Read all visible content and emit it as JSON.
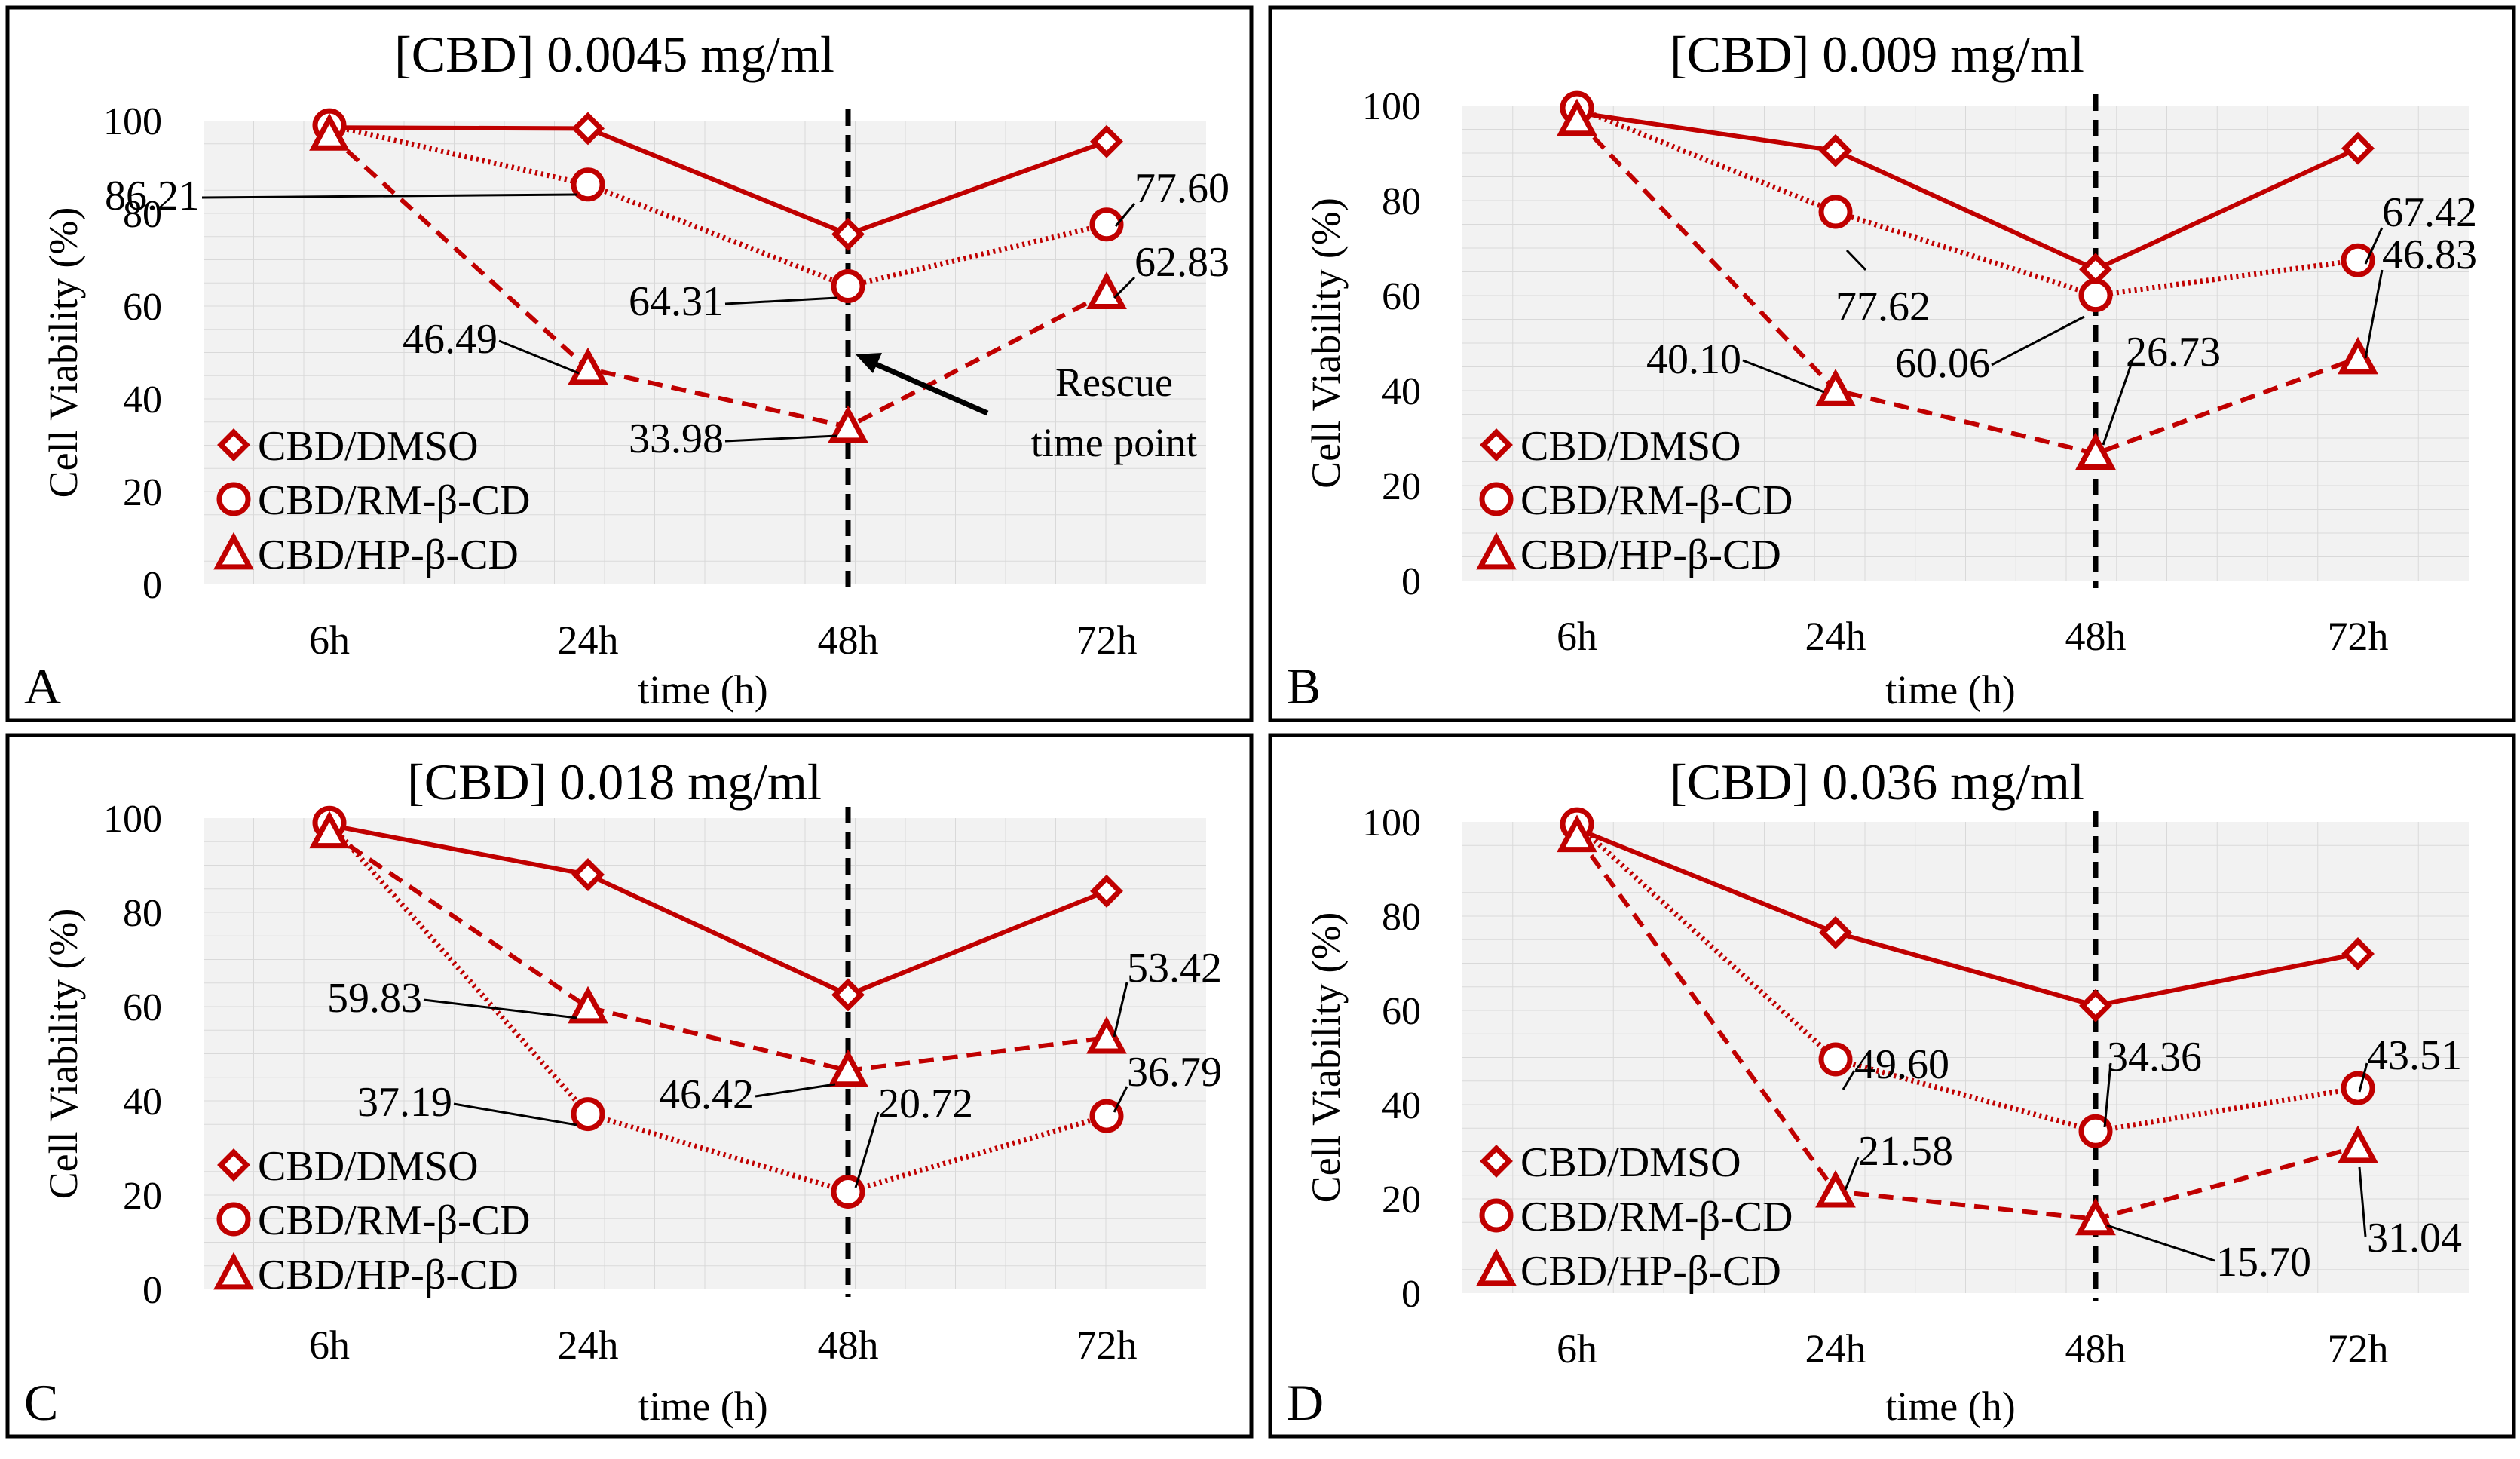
{
  "colors": {
    "series": "#c00000",
    "frame": "#000000",
    "plot_bg": "#f2f2f2",
    "grid": "#d9d9d9"
  },
  "chart_data": [
    {
      "type": "line",
      "panel": "A",
      "title": "[CBD] 0.0045 mg/ml",
      "xlabel": "time (h)",
      "ylabel": "Cell Viability (%)",
      "categories": [
        "6h",
        "24h",
        "48h",
        "72h"
      ],
      "ylim": [
        0,
        100
      ],
      "yticks": [
        "0",
        "20",
        "40",
        "60",
        "80",
        "100"
      ],
      "grid": true,
      "legend_position": "bottom-left",
      "series": [
        {
          "name": "CBD/DMSO",
          "marker": "diamond",
          "dash": "solid",
          "values": [
            98.5,
            98.3,
            75.5,
            95.5
          ]
        },
        {
          "name": "CBD/RM-β-CD",
          "marker": "circle",
          "dash": "dotted",
          "values": [
            99,
            86.21,
            64.31,
            77.6
          ]
        },
        {
          "name": "CBD/HP-β-CD",
          "marker": "triangle",
          "dash": "dashed",
          "values": [
            97,
            46.49,
            33.98,
            62.83
          ]
        }
      ],
      "value_labels": [
        {
          "text": "86.21",
          "series": 1,
          "index": 1
        },
        {
          "text": "77.60",
          "series": 1,
          "index": 3
        },
        {
          "text": "62.83",
          "series": 2,
          "index": 3
        },
        {
          "text": "64.31",
          "series": 1,
          "index": 2
        },
        {
          "text": "46.49",
          "series": 2,
          "index": 1
        },
        {
          "text": "33.98",
          "series": 2,
          "index": 2
        }
      ],
      "annotation": {
        "line1": "Rescue",
        "line2": "time point"
      }
    },
    {
      "type": "line",
      "panel": "B",
      "title": "[CBD] 0.009 mg/ml",
      "xlabel": "time (h)",
      "ylabel": "Cell Viability (%)",
      "categories": [
        "6h",
        "24h",
        "48h",
        "72h"
      ],
      "ylim": [
        0,
        100
      ],
      "yticks": [
        "0",
        "20",
        "40",
        "60",
        "80",
        "100"
      ],
      "grid": true,
      "legend_position": "bottom-left",
      "series": [
        {
          "name": "CBD/DMSO",
          "marker": "diamond",
          "dash": "solid",
          "values": [
            98.5,
            90.5,
            65.5,
            91
          ]
        },
        {
          "name": "CBD/RM-β-CD",
          "marker": "circle",
          "dash": "dotted",
          "values": [
            99.5,
            77.62,
            60.06,
            67.42
          ]
        },
        {
          "name": "CBD/HP-β-CD",
          "marker": "triangle",
          "dash": "dashed",
          "values": [
            97,
            40.1,
            26.73,
            46.83
          ]
        }
      ],
      "value_labels": [
        {
          "text": "67.42",
          "series": 1,
          "index": 3
        },
        {
          "text": "46.83",
          "series": 2,
          "index": 3
        },
        {
          "text": "77.62",
          "series": 1,
          "index": 1
        },
        {
          "text": "60.06",
          "series": 1,
          "index": 2
        },
        {
          "text": "40.10",
          "series": 2,
          "index": 1
        },
        {
          "text": "26.73",
          "series": 2,
          "index": 2
        }
      ]
    },
    {
      "type": "line",
      "panel": "C",
      "title": "[CBD] 0.018 mg/ml",
      "xlabel": "time (h)",
      "ylabel": "Cell Viability (%)",
      "categories": [
        "6h",
        "24h",
        "48h",
        "72h"
      ],
      "ylim": [
        0,
        100
      ],
      "yticks": [
        "0",
        "20",
        "40",
        "60",
        "80",
        "100"
      ],
      "grid": true,
      "legend_position": "bottom-left",
      "series": [
        {
          "name": "CBD/DMSO",
          "marker": "diamond",
          "dash": "solid",
          "values": [
            98.5,
            88,
            62.5,
            84.5
          ]
        },
        {
          "name": "CBD/RM-β-CD",
          "marker": "circle",
          "dash": "dotted",
          "values": [
            99,
            37.19,
            20.72,
            36.79
          ]
        },
        {
          "name": "CBD/HP-β-CD",
          "marker": "triangle",
          "dash": "dashed",
          "values": [
            97,
            59.83,
            46.42,
            53.42
          ]
        }
      ],
      "value_labels": [
        {
          "text": "59.83",
          "series": 2,
          "index": 1
        },
        {
          "text": "53.42",
          "series": 2,
          "index": 3
        },
        {
          "text": "36.79",
          "series": 1,
          "index": 3
        },
        {
          "text": "37.19",
          "series": 1,
          "index": 1
        },
        {
          "text": "46.42",
          "series": 2,
          "index": 2
        },
        {
          "text": "20.72",
          "series": 1,
          "index": 2
        }
      ]
    },
    {
      "type": "line",
      "panel": "D",
      "title": "[CBD] 0.036 mg/ml",
      "xlabel": "time (h)",
      "ylabel": "Cell Viability (%)",
      "categories": [
        "6h",
        "24h",
        "48h",
        "72h"
      ],
      "ylim": [
        0,
        100
      ],
      "yticks": [
        "0",
        "20",
        "40",
        "60",
        "80",
        "100"
      ],
      "grid": true,
      "legend_position": "bottom-left",
      "series": [
        {
          "name": "CBD/DMSO",
          "marker": "diamond",
          "dash": "solid",
          "values": [
            98.5,
            76.5,
            61,
            72
          ]
        },
        {
          "name": "CBD/RM-β-CD",
          "marker": "circle",
          "dash": "dotted",
          "values": [
            99.5,
            49.6,
            34.36,
            43.51
          ]
        },
        {
          "name": "CBD/HP-β-CD",
          "marker": "triangle",
          "dash": "dashed",
          "values": [
            97,
            21.58,
            15.7,
            31.04
          ]
        }
      ],
      "value_labels": [
        {
          "text": "49.60",
          "series": 1,
          "index": 1
        },
        {
          "text": "34.36",
          "series": 1,
          "index": 2
        },
        {
          "text": "43.51",
          "series": 1,
          "index": 3
        },
        {
          "text": "21.58",
          "series": 2,
          "index": 1
        },
        {
          "text": "15.70",
          "series": 2,
          "index": 2
        },
        {
          "text": "31.04",
          "series": 2,
          "index": 3
        }
      ]
    }
  ]
}
